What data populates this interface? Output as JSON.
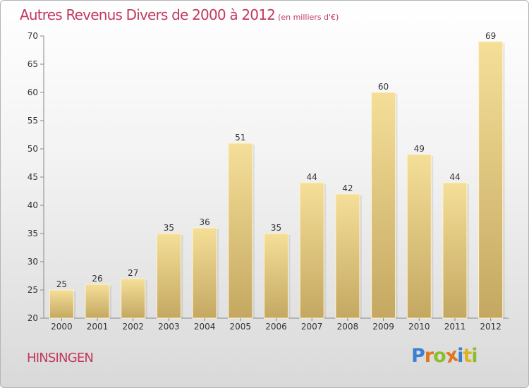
{
  "title": "Autres Revenus Divers de 2000 à 2012",
  "subtitle": "(en milliers d'€)",
  "commune": "HINSINGEN",
  "logo": {
    "letters": [
      "P",
      "r",
      "o",
      "x",
      "i",
      "t",
      "i"
    ],
    "colors": [
      "#3a7fd0",
      "#e0761e",
      "#8cbd2d",
      "#e0761e",
      "#3a7fd0",
      "#e0b21e",
      "#8cbd2d"
    ]
  },
  "colors": {
    "accent": "#c2395e",
    "bar_top": "#f5df98",
    "bar_bottom": "#c4a862"
  },
  "chart_data": {
    "type": "bar",
    "categories": [
      "2000",
      "2001",
      "2002",
      "2003",
      "2004",
      "2005",
      "2006",
      "2007",
      "2008",
      "2009",
      "2010",
      "2011",
      "2012"
    ],
    "values": [
      25,
      26,
      27,
      35,
      36,
      51,
      35,
      44,
      42,
      60,
      49,
      44,
      69
    ],
    "yticks": [
      20,
      25,
      30,
      35,
      40,
      45,
      50,
      55,
      60,
      65,
      70
    ],
    "ylim": [
      20,
      70
    ],
    "grid": false,
    "title": "Autres Revenus Divers de 2000 à 2012",
    "subtitle": "(en milliers d'€)"
  }
}
